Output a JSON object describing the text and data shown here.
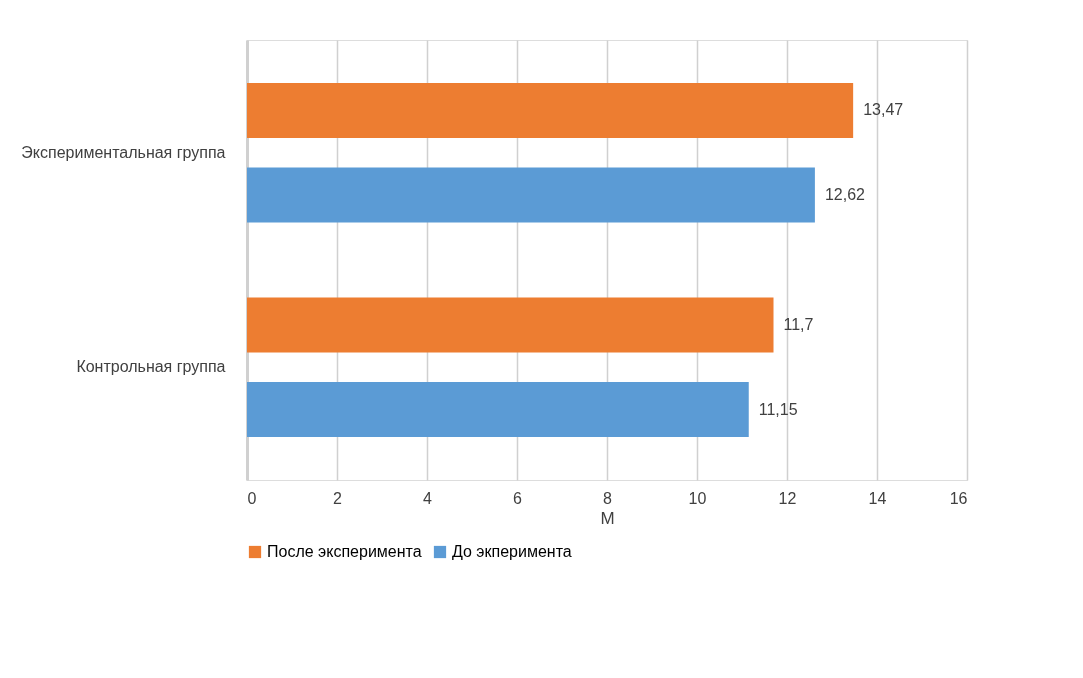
{
  "chart_data": {
    "type": "bar",
    "orientation": "horizontal",
    "categories": [
      "Экспериментальная группа",
      "Контрольная группа"
    ],
    "series": [
      {
        "name": "После эксперимента",
        "color": "#ed7d31",
        "values": [
          13.47,
          11.7
        ],
        "value_labels": [
          "13,47",
          "11,7"
        ]
      },
      {
        "name": "До экперимента",
        "color": "#5b9bd5",
        "values": [
          12.62,
          11.15
        ],
        "value_labels": [
          "12,62",
          "11,15"
        ]
      }
    ],
    "xlabel": "M",
    "xlim": [
      0,
      16
    ],
    "xticks": [
      0,
      2,
      4,
      6,
      8,
      10,
      12,
      14,
      16
    ],
    "grid": "x",
    "legend": "bottom"
  }
}
